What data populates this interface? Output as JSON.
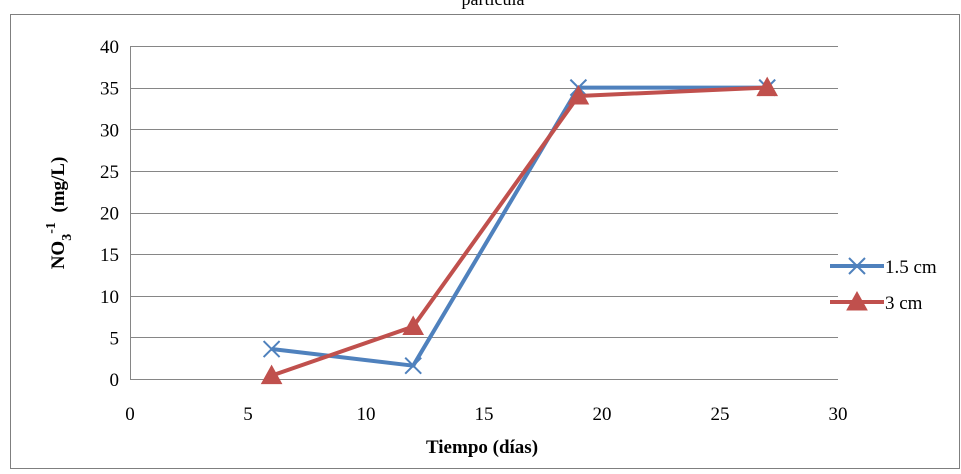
{
  "chart_data": {
    "type": "line",
    "title": "partícula",
    "xlabel": "Tiempo (días)",
    "ylabel": {
      "base": "NO",
      "sub": "3",
      "sup": "-1",
      "rest": "  (mg/L)"
    },
    "xlim": [
      0,
      30
    ],
    "ylim": [
      0,
      40
    ],
    "xticks": [
      0,
      5,
      10,
      15,
      20,
      25,
      30
    ],
    "yticks": [
      0,
      5,
      10,
      15,
      20,
      25,
      30,
      35,
      40
    ],
    "grid": {
      "horizontal": true,
      "vertical": false
    },
    "legend_position": "right",
    "series": [
      {
        "name": "1.5 cm",
        "color": "#4F81BD",
        "marker": "x",
        "x": [
          6,
          12,
          19,
          27
        ],
        "y": [
          3.6,
          1.6,
          35,
          35
        ]
      },
      {
        "name": "3 cm",
        "color": "#C0504D",
        "marker": "triangle",
        "x": [
          6,
          12,
          19,
          27
        ],
        "y": [
          0.4,
          6.3,
          34,
          35
        ]
      }
    ]
  }
}
